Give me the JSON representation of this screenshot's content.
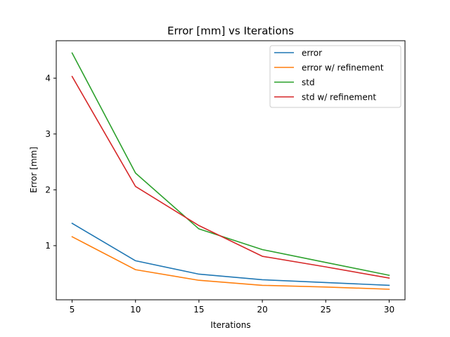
{
  "chart_data": {
    "type": "line",
    "title": "Error [mm] vs Iterations",
    "xlabel": "Iterations",
    "ylabel": "Error [mm]",
    "x": [
      5,
      10,
      15,
      20,
      25,
      30
    ],
    "xlim": [
      3.75,
      31.25
    ],
    "ylim": [
      0.0309,
      4.67
    ],
    "xticks": [
      "5",
      "10",
      "15",
      "20",
      "25",
      "30"
    ],
    "yticks": [
      "1",
      "2",
      "3",
      "4"
    ],
    "grid": false,
    "legend_position": "top-right",
    "series": [
      {
        "name": "error",
        "color": "#1f77b4",
        "values": [
          1.4,
          0.73,
          0.49,
          0.39,
          0.34,
          0.29
        ]
      },
      {
        "name": "error w/ refinement",
        "color": "#ff7f0e",
        "values": [
          1.16,
          0.57,
          0.38,
          0.29,
          0.26,
          0.22
        ]
      },
      {
        "name": "std",
        "color": "#2ca02c",
        "values": [
          4.45,
          2.3,
          1.3,
          0.93,
          0.7,
          0.47
        ]
      },
      {
        "name": "std w/ refinement",
        "color": "#d62728",
        "values": [
          4.03,
          2.06,
          1.36,
          0.81,
          0.62,
          0.42
        ]
      }
    ]
  }
}
